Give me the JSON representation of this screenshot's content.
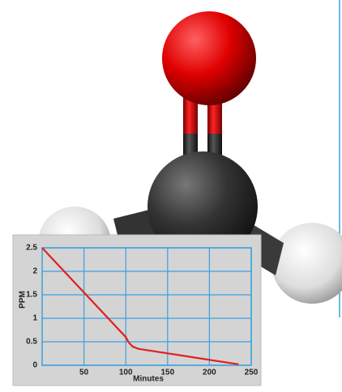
{
  "chart_data": {
    "type": "line",
    "x_label": "Minutes",
    "y_label": "PPM",
    "x": [
      0,
      100,
      103,
      108,
      115,
      235
    ],
    "series": [
      {
        "name": "PPM",
        "color": "#e02020",
        "values": [
          2.5,
          0.6,
          0.5,
          0.4,
          0.35,
          0.02
        ]
      }
    ],
    "xlim": [
      0,
      250
    ],
    "ylim": [
      0,
      2.5
    ],
    "xticks": [
      50,
      100,
      150,
      200,
      250
    ],
    "yticks": [
      0,
      0.5,
      1,
      1.5,
      2,
      2.5
    ],
    "grid": true,
    "grid_color": "#3aa0e0"
  }
}
